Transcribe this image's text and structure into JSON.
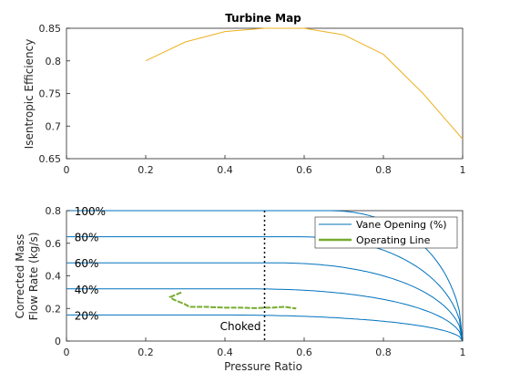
{
  "chart_data": [
    {
      "type": "line",
      "title": "Turbine Map",
      "xlabel": "",
      "ylabel": "Isentropic Efficiency",
      "xlim": [
        0,
        1
      ],
      "ylim": [
        0.65,
        0.85
      ],
      "xticks": [
        "0",
        "0.2",
        "0.4",
        "0.6",
        "0.8",
        "1"
      ],
      "yticks": [
        "0.65",
        "0.7",
        "0.75",
        "0.8",
        "0.85"
      ],
      "grid": false,
      "colors": {
        "line": "#edb120"
      },
      "series": [
        {
          "x": [
            0.2,
            0.3,
            0.4,
            0.5,
            0.6,
            0.7,
            0.8,
            0.9,
            1.0
          ],
          "y": [
            0.8,
            0.829,
            0.845,
            0.85,
            0.85,
            0.84,
            0.81,
            0.75,
            0.68
          ]
        }
      ]
    },
    {
      "type": "line",
      "title": "",
      "xlabel": "Pressure Ratio",
      "ylabel": [
        "Corrected Mass",
        "Flow Rate (kg/s)"
      ],
      "xlim": [
        0,
        1
      ],
      "ylim": [
        0,
        0.8
      ],
      "xticks": [
        "0",
        "0.2",
        "0.4",
        "0.6",
        "0.8",
        "1"
      ],
      "yticks": [
        "0",
        "0.2",
        "0.4",
        "0.6",
        "0.8"
      ],
      "grid": false,
      "legend_position": "top-right",
      "legend": [
        "Vane Opening (%)",
        "Operating Line"
      ],
      "colors": {
        "vane": "#0072bd",
        "operating": "#77ac30",
        "choke": "#000000"
      },
      "vane_curves": [
        {
          "label": "100%",
          "flow": 0.8,
          "bend_start": 0.66
        },
        {
          "label": "80%",
          "flow": 0.64,
          "bend_start": 0.58
        },
        {
          "label": "60%",
          "flow": 0.48,
          "bend_start": 0.52
        },
        {
          "label": "40%",
          "flow": 0.32,
          "bend_start": 0.46
        },
        {
          "label": "20%",
          "flow": 0.16,
          "bend_start": 0.38
        }
      ],
      "operating_line": {
        "x": [
          0.29,
          0.262,
          0.27,
          0.3,
          0.31,
          0.35,
          0.4,
          0.44,
          0.48,
          0.5,
          0.52,
          0.55,
          0.58
        ],
        "y": [
          0.298,
          0.27,
          0.255,
          0.225,
          0.21,
          0.21,
          0.205,
          0.205,
          0.202,
          0.205,
          0.205,
          0.21,
          0.2
        ]
      },
      "choke": {
        "x": 0.5,
        "label": "Choked"
      }
    }
  ]
}
